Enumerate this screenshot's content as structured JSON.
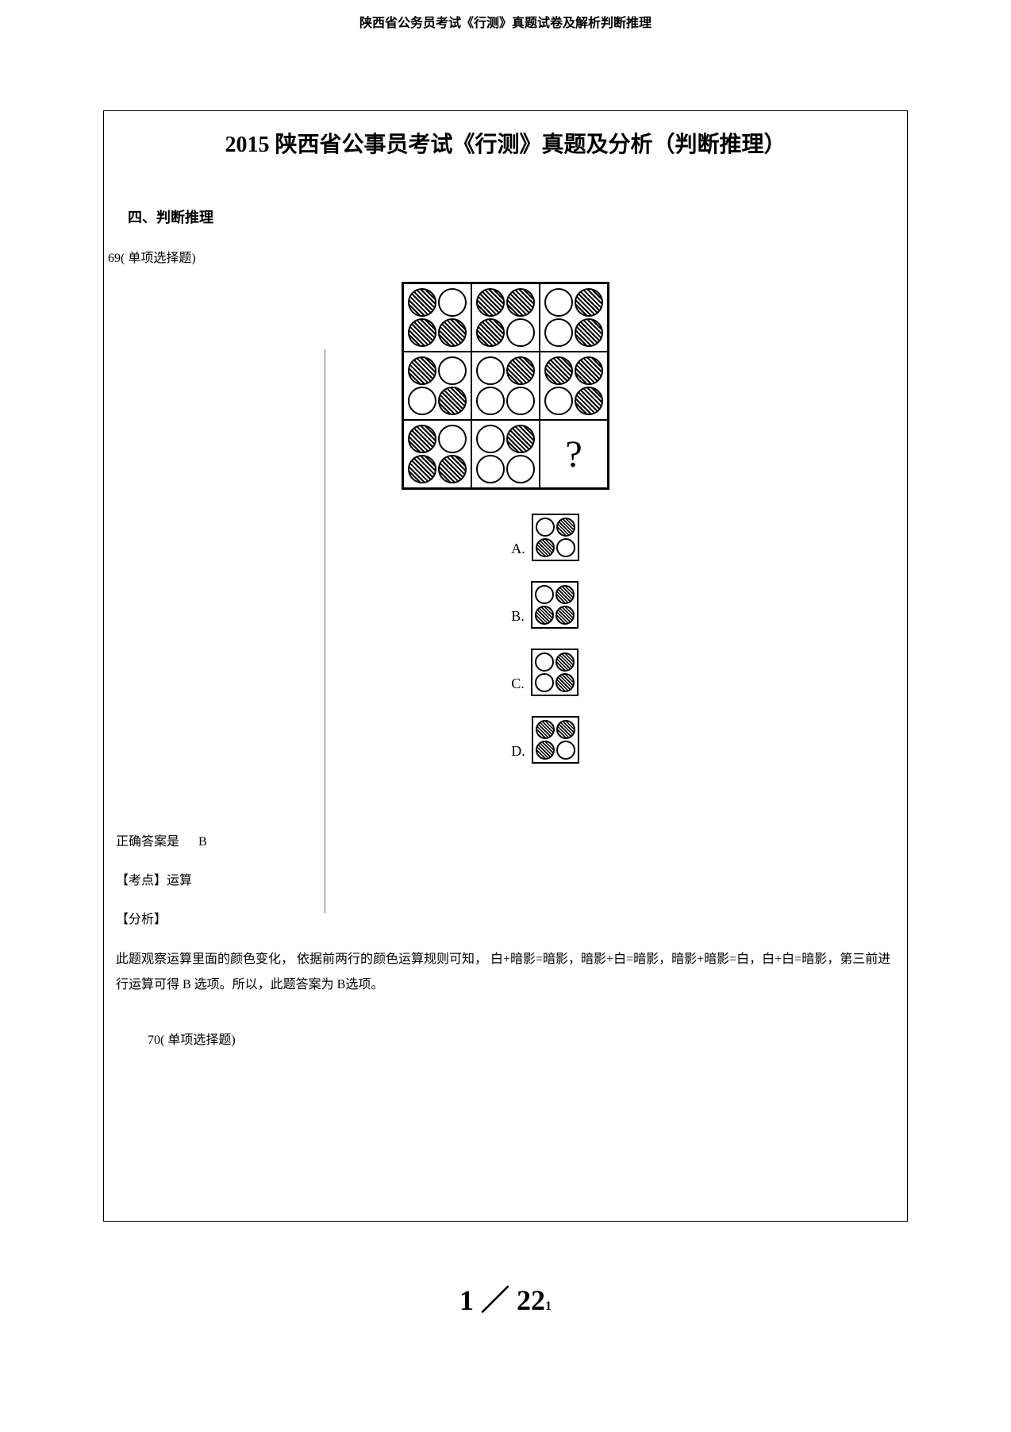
{
  "header": {
    "title": "陕西省公务员考试《行测》真题试卷及解析判断推理"
  },
  "document": {
    "main_title": "2015 陕西省公事员考试《行测》真题及分析（判断推理）",
    "section_label": "四、判断推理",
    "question_69": {
      "number": "69(    单项选择题)",
      "matrix": {
        "type": "3x3_grid",
        "cells": [
          [
            [
              "h",
              "w",
              "h",
              "h"
            ],
            [
              "h",
              "h",
              "h",
              "w"
            ],
            [
              "w",
              "h",
              "w",
              "h"
            ]
          ],
          [
            [
              "h",
              "w",
              "w",
              "h"
            ],
            [
              "w",
              "h",
              "w",
              "w"
            ],
            [
              "h",
              "h",
              "w",
              "h"
            ]
          ],
          [
            [
              "h",
              "w",
              "h",
              "h"
            ],
            [
              "w",
              "h",
              "w",
              "w"
            ],
            "question"
          ]
        ]
      },
      "options": {
        "A": [
          "w",
          "h",
          "h",
          "w"
        ],
        "B": [
          "w",
          "h",
          "h",
          "h"
        ],
        "C": [
          "w",
          "h",
          "w",
          "h"
        ],
        "D": [
          "h",
          "h",
          "h",
          "w"
        ]
      },
      "question_symbol": "?",
      "option_labels": {
        "A": "A.",
        "B": "B.",
        "C": "C.",
        "D": "D."
      }
    },
    "answer": {
      "correct_label": "正确答案是",
      "correct_value": "B",
      "topic_label": "【考点】运算",
      "analysis_label": "【分析】",
      "analysis_text": "此题观察运算里面的颜色变化，      依据前两行的颜色运算规则可知，    白+暗影=暗影，暗影+白=暗影，暗影+暗影=白，白+白=暗影，第三前进行运算可得        B 选项。所以，此题答案为      B选项。"
    },
    "question_70": {
      "number": "70(  单项选择题)"
    }
  },
  "footer": {
    "page_current": "1",
    "page_separator": "／",
    "page_total": "22",
    "page_sub": "1"
  },
  "style": {
    "colors": {
      "background": "#ffffff",
      "text": "#000000",
      "border": "#000000",
      "hatch_dark": "#000000",
      "hatch_light": "#ffffff"
    },
    "fonts": {
      "body": "SimSun",
      "title_size": 28,
      "body_size": 16,
      "footer_size": 36
    }
  }
}
